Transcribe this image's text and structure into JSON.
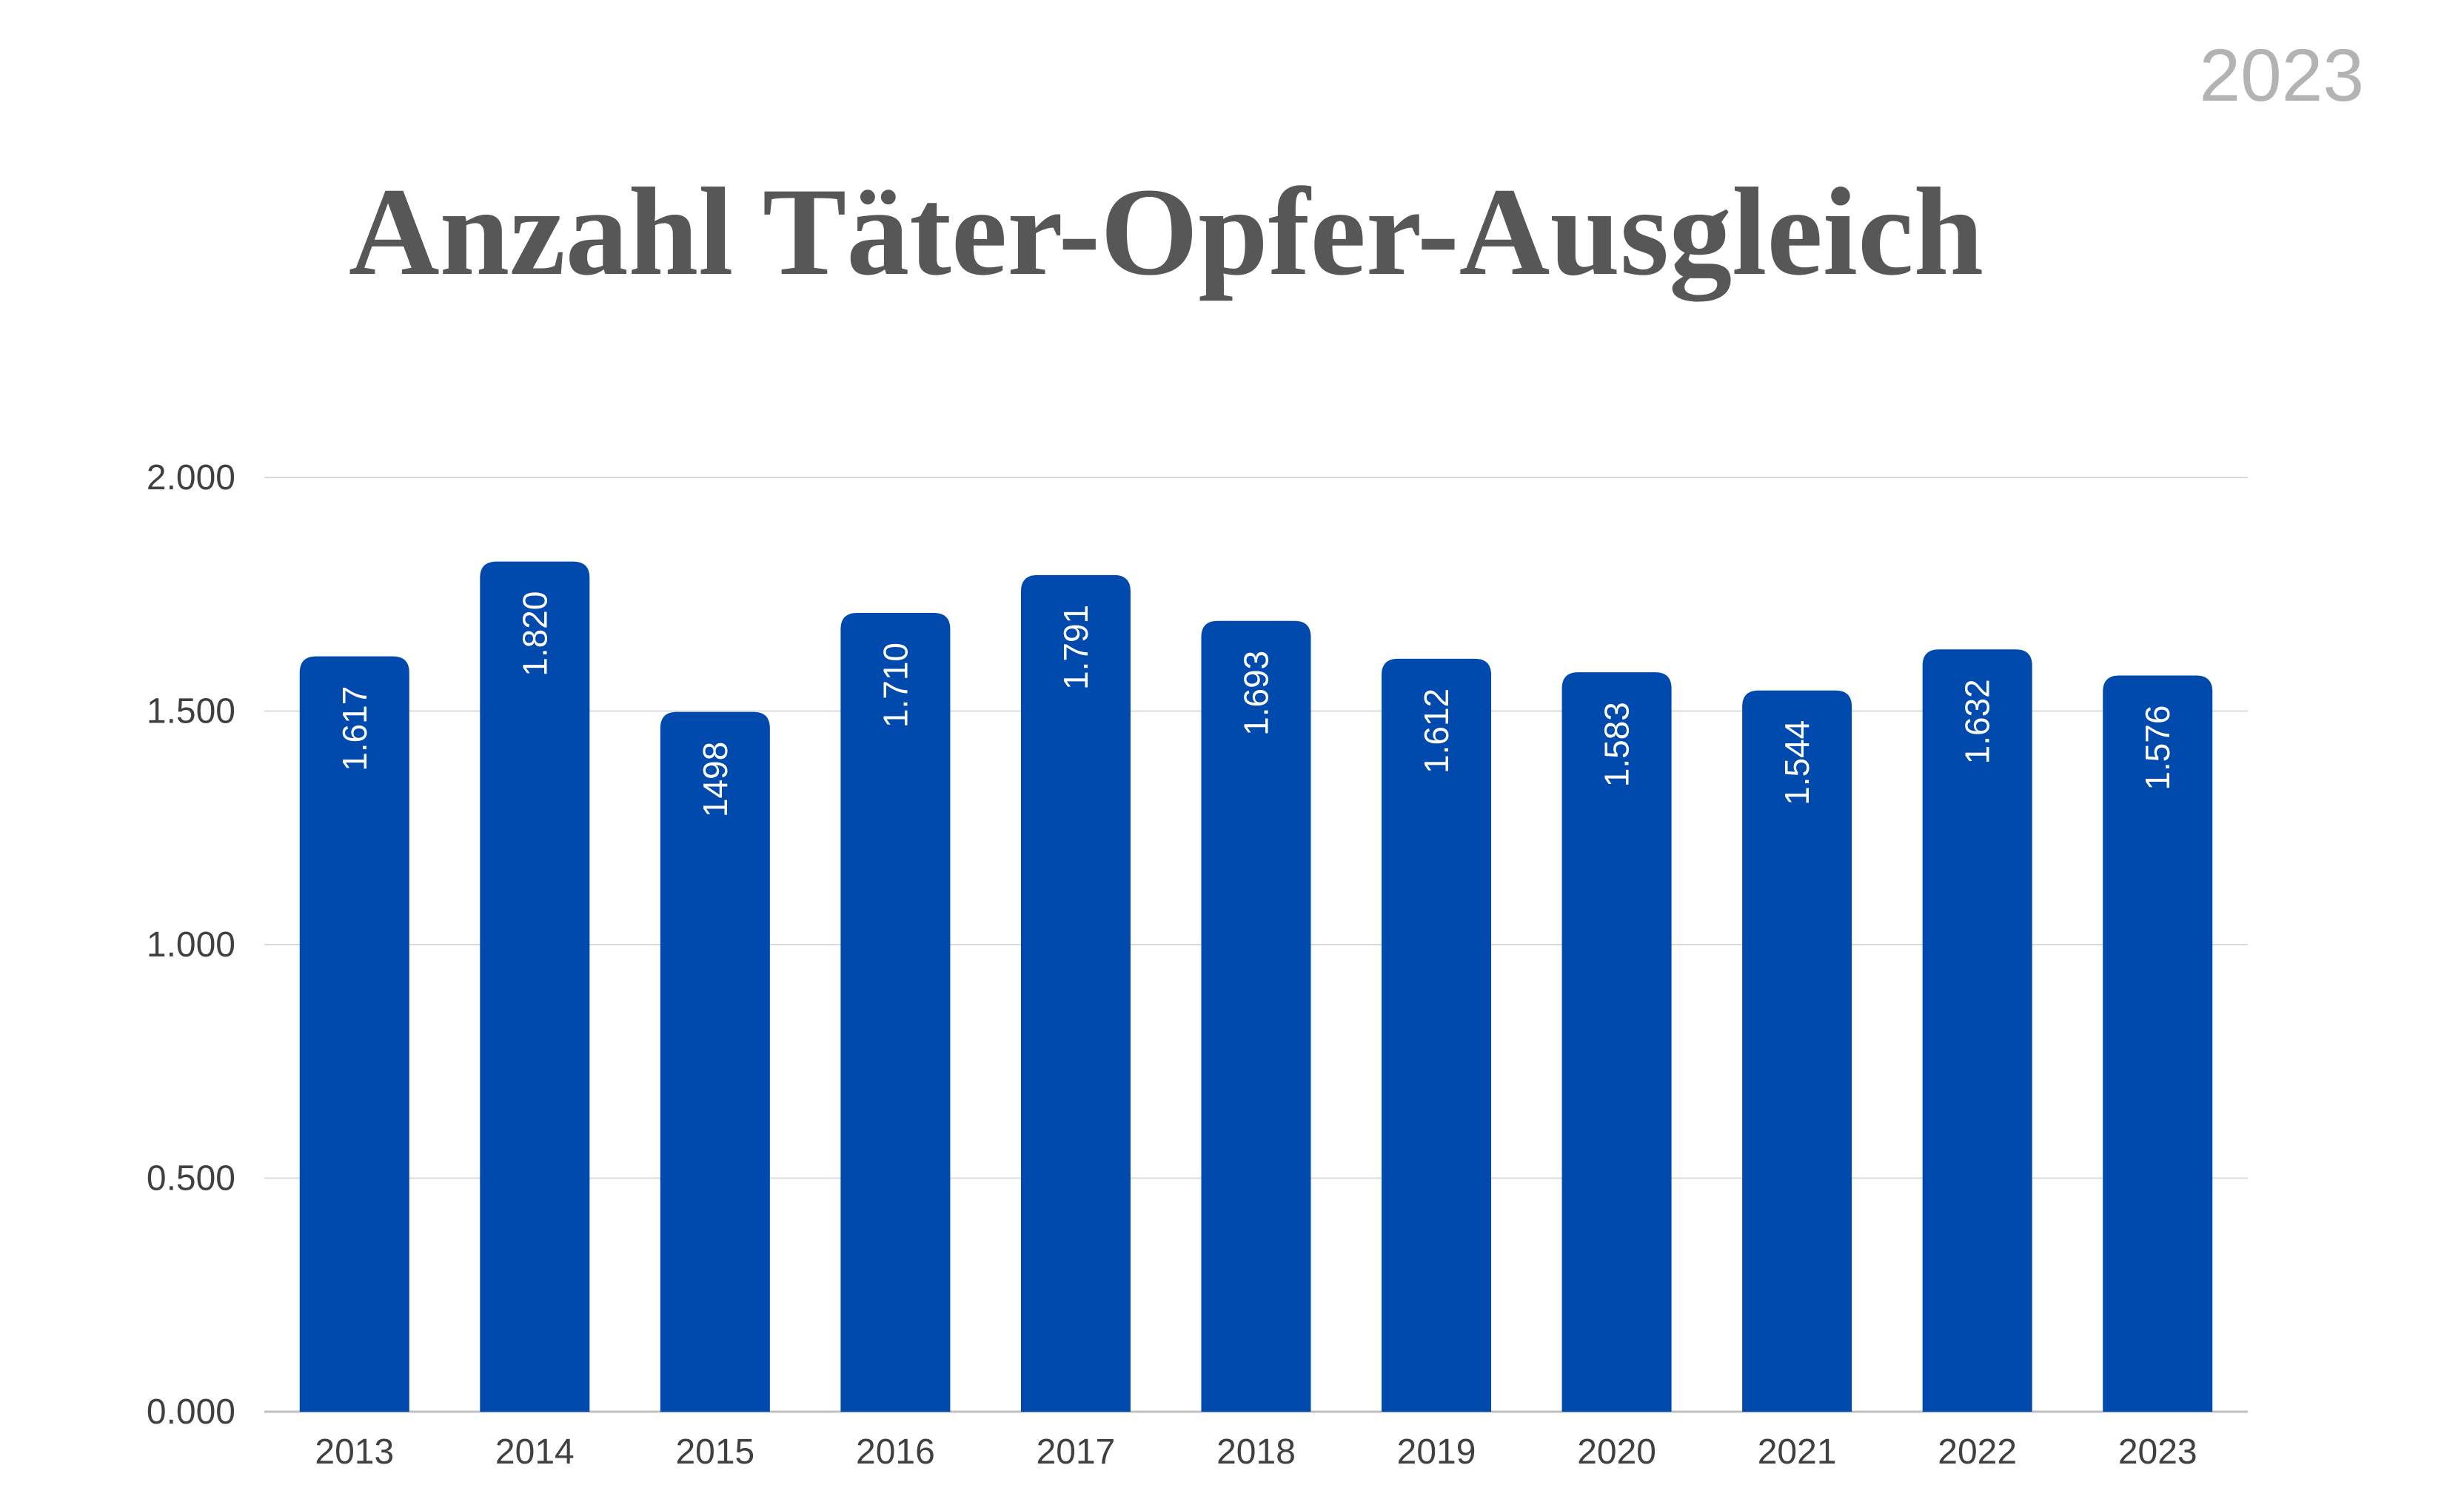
{
  "header": {
    "year": "2023"
  },
  "chart_data": {
    "type": "bar",
    "title": "Anzahl Täter-Opfer-Ausgleich",
    "xlabel": "",
    "ylabel": "",
    "categories": [
      "2013",
      "2014",
      "2015",
      "2016",
      "2017",
      "2018",
      "2019",
      "2020",
      "2021",
      "2022",
      "2023"
    ],
    "values": [
      1617,
      1820,
      1498,
      1710,
      1791,
      1693,
      1612,
      1583,
      1544,
      1632,
      1576
    ],
    "data_labels": [
      "1.617",
      "1.820",
      "1498",
      "1.710",
      "1.791",
      "1.693",
      "1.612",
      "1.583",
      "1.544",
      "1.632",
      "1.576"
    ],
    "ylim": [
      0,
      2000
    ],
    "yticks": [
      0,
      500,
      1000,
      1500,
      2000
    ],
    "ytick_labels": [
      "0.000",
      "0.500",
      "1.000",
      "1.500",
      "2.000"
    ],
    "grid": true,
    "colors": {
      "bar": "#004aad",
      "grid": "#d9d9d9",
      "axis": "#bfbfbf",
      "title": "#575757",
      "year_badge": "#b3b3b3"
    }
  }
}
